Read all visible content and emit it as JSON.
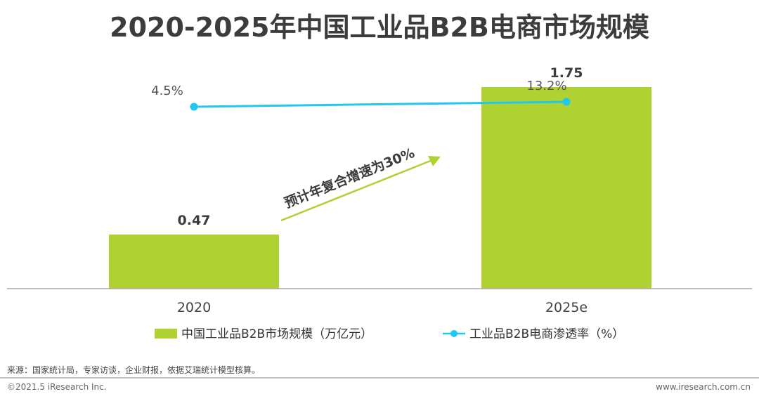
{
  "chart_data": {
    "type": "bar",
    "title": "2020-2025年中国工业品B2B电商市场规模",
    "categories": [
      "2020",
      "2025e"
    ],
    "series": [
      {
        "name": "中国工业品B2B市场规模（万亿元）",
        "type": "bar",
        "values": [
          0.47,
          1.75
        ],
        "value_labels": [
          "0.47",
          "1.75"
        ],
        "color": "#b0d132"
      },
      {
        "name": "工业品B2B电商渗透率（%）",
        "type": "line",
        "values": [
          4.5,
          13.2
        ],
        "value_labels": [
          "4.5%",
          "13.2%"
        ],
        "color": "#1fc8ef"
      }
    ],
    "annotation": "预计年复合增速为30%",
    "annotation_color": "#b0d132",
    "ylim": [
      0,
      2
    ],
    "grid": false,
    "legend_position": "bottom"
  },
  "footer": {
    "source": "来源：国家统计局，专家访谈，企业财报，依据艾瑞统计模型核算。",
    "copyright": "©2021.5 iResearch Inc.",
    "website": "www.iresearch.com.cn"
  },
  "colors": {
    "title": "#3c3c3c",
    "axis": "#aaaaaa",
    "bar": "#b0d132",
    "line": "#1fc8ef"
  }
}
